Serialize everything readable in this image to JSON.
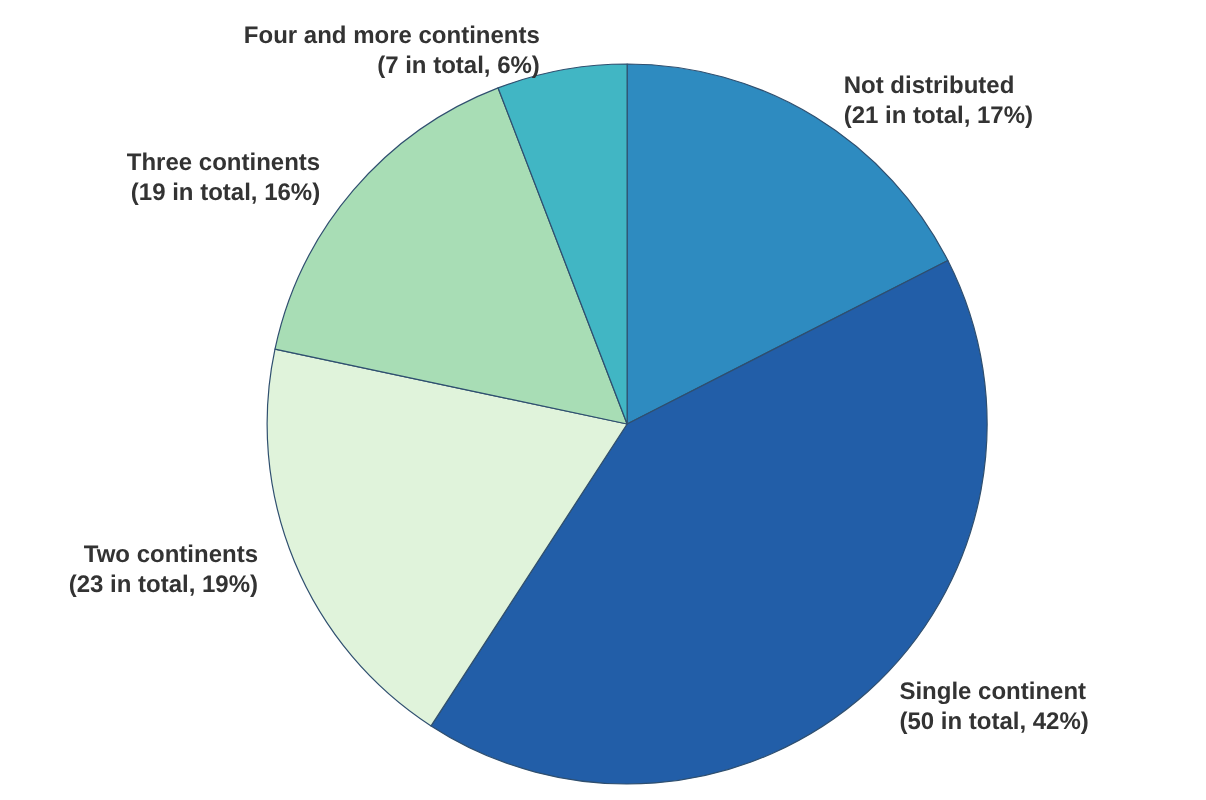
{
  "chart_data": {
    "type": "pie",
    "categories": [
      "Not distributed",
      "Single continent",
      "Two continents",
      "Three continents",
      "Four and more continents"
    ],
    "values": [
      21,
      50,
      23,
      19,
      7
    ],
    "value_labels": [
      "(21 in total, 17%)",
      "(50 in total, 42%)",
      "(23 in total, 19%)",
      "(19 in total, 16%)",
      "(7 in total, 6%)"
    ],
    "colors": [
      "#2e8bc0",
      "#225ea8",
      "#e0f3db",
      "#a8ddb5",
      "#41b6c4"
    ],
    "legend": false
  }
}
